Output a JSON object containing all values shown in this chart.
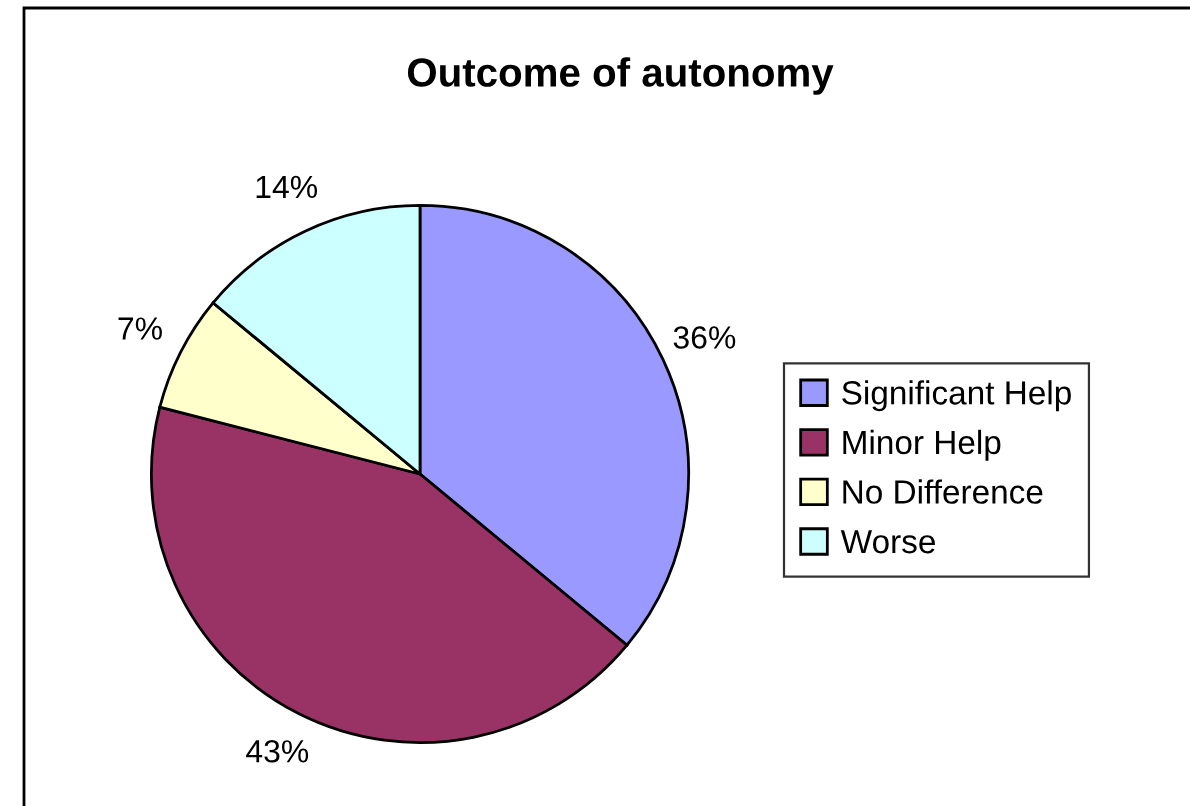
{
  "chart_data": {
    "type": "pie",
    "title": "Outcome of autonomy",
    "categories": [
      "Significant Help",
      "Minor Help",
      "No Difference",
      "Worse"
    ],
    "values": [
      36,
      43,
      7,
      14
    ],
    "colors": [
      "#9999ff",
      "#993366",
      "#ffffcc",
      "#ccffff"
    ],
    "value_labels": [
      "36%",
      "43%",
      "7%",
      "14%"
    ],
    "legend": "right"
  }
}
